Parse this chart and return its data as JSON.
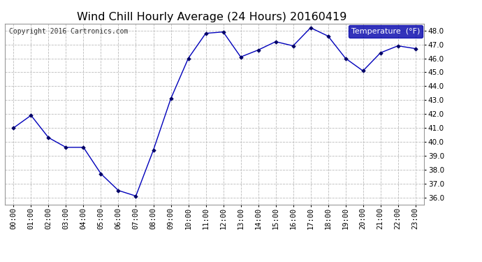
{
  "title": "Wind Chill Hourly Average (24 Hours) 20160419",
  "copyright": "Copyright 2016 Cartronics.com",
  "legend_label": "Temperature  (°F)",
  "hours": [
    "00:00",
    "01:00",
    "02:00",
    "03:00",
    "04:00",
    "05:00",
    "06:00",
    "07:00",
    "08:00",
    "09:00",
    "10:00",
    "11:00",
    "12:00",
    "13:00",
    "14:00",
    "15:00",
    "16:00",
    "17:00",
    "18:00",
    "19:00",
    "20:00",
    "21:00",
    "22:00",
    "23:00"
  ],
  "values": [
    41.0,
    41.9,
    40.3,
    39.6,
    39.6,
    37.7,
    36.5,
    36.1,
    39.4,
    43.1,
    46.0,
    47.8,
    47.9,
    46.1,
    46.6,
    47.2,
    46.9,
    48.2,
    47.6,
    46.0,
    45.1,
    46.4,
    46.9,
    46.7
  ],
  "ylim": [
    35.5,
    48.5
  ],
  "yticks": [
    36.0,
    37.0,
    38.0,
    39.0,
    40.0,
    41.0,
    42.0,
    43.0,
    44.0,
    45.0,
    46.0,
    47.0,
    48.0
  ],
  "line_color": "#0000bb",
  "marker_color": "#000066",
  "bg_color": "#ffffff",
  "grid_color": "#bbbbbb",
  "title_fontsize": 11.5,
  "axis_fontsize": 7.5,
  "copyright_fontsize": 7,
  "legend_bg": "#0000aa",
  "legend_fg": "#ffffff",
  "legend_fontsize": 8
}
